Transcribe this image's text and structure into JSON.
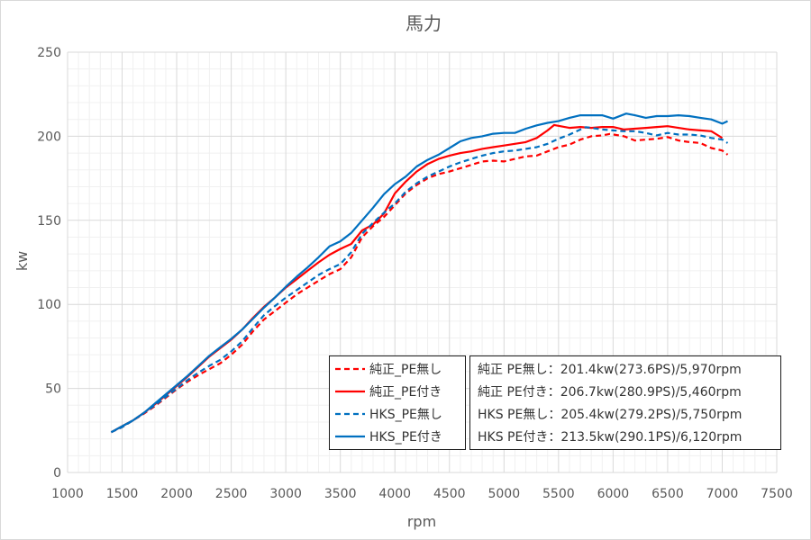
{
  "chart_data": {
    "type": "line",
    "title": "馬力",
    "xlabel": "rpm",
    "ylabel": "kw",
    "xlim": [
      1000,
      7500
    ],
    "ylim": [
      0,
      250
    ],
    "x_ticks": [
      1000,
      1500,
      2000,
      2500,
      3000,
      3500,
      4000,
      4500,
      5000,
      5500,
      6000,
      6500,
      7000,
      7500
    ],
    "y_ticks": [
      0,
      50,
      100,
      150,
      200,
      250
    ],
    "grid": {
      "major": true,
      "minor": true
    },
    "legend_position": "bottom-center",
    "series": [
      {
        "name": "純正_PE無し",
        "color": "#ff0000",
        "line_style": "dashed",
        "points": [
          [
            1400,
            24
          ],
          [
            1500,
            27
          ],
          [
            1600,
            31
          ],
          [
            1700,
            35
          ],
          [
            1800,
            39.5
          ],
          [
            1900,
            44.5
          ],
          [
            2000,
            49.5
          ],
          [
            2100,
            54
          ],
          [
            2200,
            58
          ],
          [
            2300,
            61.5
          ],
          [
            2400,
            65
          ],
          [
            2500,
            70
          ],
          [
            2600,
            76
          ],
          [
            2700,
            84
          ],
          [
            2800,
            91
          ],
          [
            2900,
            96
          ],
          [
            3000,
            101
          ],
          [
            3100,
            106
          ],
          [
            3200,
            110
          ],
          [
            3300,
            114
          ],
          [
            3400,
            118
          ],
          [
            3500,
            121
          ],
          [
            3600,
            128
          ],
          [
            3700,
            140
          ],
          [
            3800,
            146.5
          ],
          [
            3900,
            152
          ],
          [
            4000,
            159
          ],
          [
            4100,
            166
          ],
          [
            4200,
            171
          ],
          [
            4300,
            175
          ],
          [
            4400,
            177.5
          ],
          [
            4500,
            179
          ],
          [
            4600,
            181
          ],
          [
            4700,
            183
          ],
          [
            4800,
            185
          ],
          [
            4900,
            185.5
          ],
          [
            5000,
            185
          ],
          [
            5100,
            186.5
          ],
          [
            5200,
            188
          ],
          [
            5300,
            188.5
          ],
          [
            5400,
            191
          ],
          [
            5500,
            193.5
          ],
          [
            5600,
            195
          ],
          [
            5700,
            198
          ],
          [
            5800,
            200
          ],
          [
            5900,
            200.5
          ],
          [
            5970,
            201.4
          ],
          [
            6100,
            200
          ],
          [
            6200,
            197.5
          ],
          [
            6300,
            198
          ],
          [
            6400,
            198.5
          ],
          [
            6500,
            199.5
          ],
          [
            6600,
            197.5
          ],
          [
            6700,
            196.5
          ],
          [
            6800,
            196
          ],
          [
            6900,
            193
          ],
          [
            7000,
            191.5
          ],
          [
            7050,
            189
          ]
        ]
      },
      {
        "name": "純正_PE付き",
        "color": "#ff0000",
        "line_style": "solid",
        "points": [
          [
            1400,
            24
          ],
          [
            1500,
            27.5
          ],
          [
            1600,
            31
          ],
          [
            1700,
            35.5
          ],
          [
            1800,
            40.5
          ],
          [
            1900,
            46
          ],
          [
            2000,
            51.5
          ],
          [
            2100,
            57
          ],
          [
            2200,
            63
          ],
          [
            2300,
            69
          ],
          [
            2400,
            74
          ],
          [
            2500,
            79
          ],
          [
            2600,
            85
          ],
          [
            2700,
            92
          ],
          [
            2800,
            98.5
          ],
          [
            2900,
            104
          ],
          [
            3000,
            110
          ],
          [
            3100,
            115
          ],
          [
            3200,
            120
          ],
          [
            3300,
            125
          ],
          [
            3400,
            129.5
          ],
          [
            3500,
            133
          ],
          [
            3600,
            136
          ],
          [
            3700,
            144
          ],
          [
            3800,
            147.5
          ],
          [
            3900,
            154
          ],
          [
            4000,
            166
          ],
          [
            4100,
            173
          ],
          [
            4200,
            179
          ],
          [
            4300,
            183.5
          ],
          [
            4400,
            186.5
          ],
          [
            4500,
            188.5
          ],
          [
            4600,
            190
          ],
          [
            4700,
            191
          ],
          [
            4800,
            192.5
          ],
          [
            4900,
            193.5
          ],
          [
            5000,
            194.5
          ],
          [
            5100,
            195.5
          ],
          [
            5200,
            196.5
          ],
          [
            5300,
            199
          ],
          [
            5400,
            203.5
          ],
          [
            5460,
            206.7
          ],
          [
            5600,
            205
          ],
          [
            5700,
            205.5
          ],
          [
            5800,
            205
          ],
          [
            5900,
            205.5
          ],
          [
            6000,
            205.5
          ],
          [
            6100,
            204
          ],
          [
            6200,
            204.5
          ],
          [
            6300,
            205
          ],
          [
            6400,
            205.5
          ],
          [
            6500,
            206
          ],
          [
            6600,
            205
          ],
          [
            6700,
            204
          ],
          [
            6800,
            203.5
          ],
          [
            6900,
            203
          ],
          [
            6950,
            201
          ],
          [
            7000,
            199
          ]
        ]
      },
      {
        "name": "HKS_PE無し",
        "color": "#0070c0",
        "line_style": "dashed",
        "points": [
          [
            1400,
            24
          ],
          [
            1500,
            27
          ],
          [
            1600,
            31
          ],
          [
            1700,
            35.5
          ],
          [
            1800,
            40
          ],
          [
            1900,
            45
          ],
          [
            2000,
            50
          ],
          [
            2100,
            55
          ],
          [
            2200,
            59.5
          ],
          [
            2300,
            63.5
          ],
          [
            2400,
            67
          ],
          [
            2500,
            72
          ],
          [
            2600,
            78
          ],
          [
            2700,
            86
          ],
          [
            2800,
            93.5
          ],
          [
            2900,
            99
          ],
          [
            3000,
            104
          ],
          [
            3100,
            108.5
          ],
          [
            3200,
            113
          ],
          [
            3300,
            117.5
          ],
          [
            3400,
            121
          ],
          [
            3500,
            124
          ],
          [
            3600,
            131
          ],
          [
            3700,
            142
          ],
          [
            3800,
            148.5
          ],
          [
            3900,
            154.5
          ],
          [
            4000,
            160
          ],
          [
            4100,
            167
          ],
          [
            4200,
            172
          ],
          [
            4300,
            176
          ],
          [
            4400,
            179
          ],
          [
            4500,
            182
          ],
          [
            4600,
            184.5
          ],
          [
            4700,
            186.5
          ],
          [
            4800,
            188.5
          ],
          [
            4900,
            190
          ],
          [
            5000,
            191
          ],
          [
            5100,
            191.5
          ],
          [
            5200,
            192.5
          ],
          [
            5300,
            193.5
          ],
          [
            5400,
            195.5
          ],
          [
            5500,
            198.5
          ],
          [
            5600,
            201
          ],
          [
            5700,
            204
          ],
          [
            5750,
            205.4
          ],
          [
            5800,
            205
          ],
          [
            5900,
            204
          ],
          [
            6000,
            203.5
          ],
          [
            6100,
            203
          ],
          [
            6200,
            203
          ],
          [
            6300,
            202
          ],
          [
            6400,
            200.5
          ],
          [
            6500,
            202
          ],
          [
            6600,
            201
          ],
          [
            6700,
            201
          ],
          [
            6800,
            200.5
          ],
          [
            6900,
            199
          ],
          [
            7000,
            198
          ],
          [
            7050,
            196
          ]
        ]
      },
      {
        "name": "HKS_PE付き",
        "color": "#0070c0",
        "line_style": "solid",
        "points": [
          [
            1400,
            24
          ],
          [
            1500,
            27.5
          ],
          [
            1600,
            31
          ],
          [
            1700,
            35.5
          ],
          [
            1800,
            41
          ],
          [
            1900,
            46.5
          ],
          [
            2000,
            52
          ],
          [
            2100,
            57.5
          ],
          [
            2200,
            63.5
          ],
          [
            2300,
            69.5
          ],
          [
            2400,
            74.5
          ],
          [
            2500,
            79.5
          ],
          [
            2600,
            85
          ],
          [
            2700,
            91.5
          ],
          [
            2800,
            98
          ],
          [
            2900,
            104
          ],
          [
            3000,
            110.5
          ],
          [
            3100,
            116.5
          ],
          [
            3200,
            122
          ],
          [
            3300,
            128
          ],
          [
            3400,
            134.5
          ],
          [
            3500,
            137.5
          ],
          [
            3600,
            142.5
          ],
          [
            3700,
            150
          ],
          [
            3800,
            157.5
          ],
          [
            3900,
            165.5
          ],
          [
            4000,
            171.5
          ],
          [
            4100,
            176
          ],
          [
            4200,
            182
          ],
          [
            4300,
            186
          ],
          [
            4400,
            189
          ],
          [
            4500,
            193
          ],
          [
            4600,
            197
          ],
          [
            4700,
            199
          ],
          [
            4800,
            200
          ],
          [
            4900,
            201.5
          ],
          [
            5000,
            202
          ],
          [
            5100,
            202
          ],
          [
            5200,
            204.5
          ],
          [
            5300,
            206.5
          ],
          [
            5400,
            208
          ],
          [
            5500,
            209
          ],
          [
            5600,
            211
          ],
          [
            5700,
            212.5
          ],
          [
            5800,
            212.5
          ],
          [
            5900,
            212.5
          ],
          [
            6000,
            210.5
          ],
          [
            6120,
            213.5
          ],
          [
            6200,
            212.5
          ],
          [
            6300,
            211
          ],
          [
            6400,
            212
          ],
          [
            6500,
            212
          ],
          [
            6600,
            212.5
          ],
          [
            6700,
            212
          ],
          [
            6800,
            211
          ],
          [
            6900,
            210
          ],
          [
            7000,
            207.5
          ],
          [
            7050,
            209
          ]
        ]
      }
    ],
    "annotations": [
      "純正 PE無し：201.4kw(273.6PS)/5,970rpm",
      "純正 PE付き：206.7kw(280.9PS)/5,460rpm",
      "HKS PE無し：205.4kw(279.2PS)/5,750rpm",
      "HKS PE付き：213.5kw(290.1PS)/6,120rpm"
    ]
  }
}
